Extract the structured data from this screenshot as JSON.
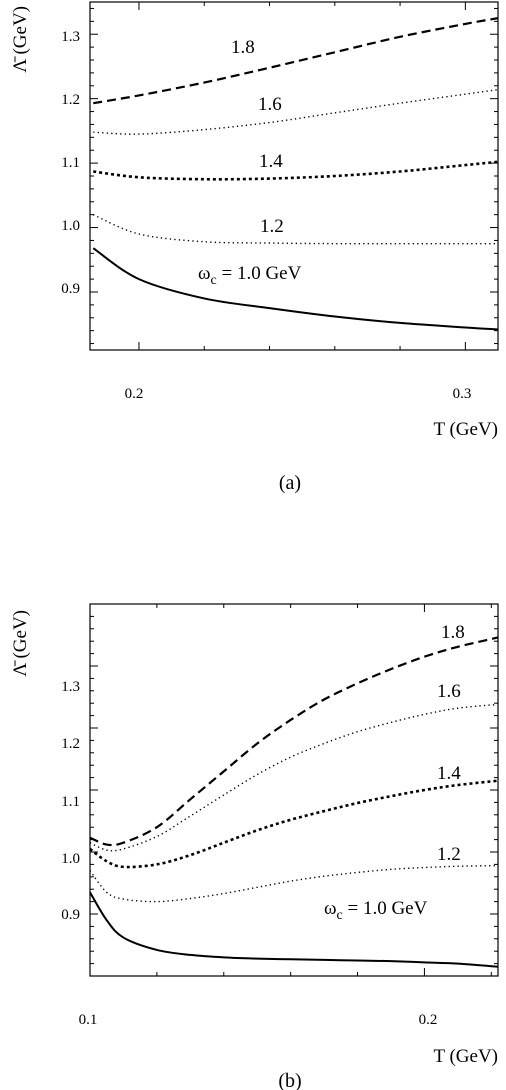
{
  "chart_data": [
    {
      "type": "line",
      "panel_label": "(a)",
      "xlabel": "T (GeV)",
      "ylabel": "Λ̄ (GeV)",
      "xlim": [
        0.185,
        0.31
      ],
      "ylim": [
        0.81,
        1.35
      ],
      "xticks": [
        0.2,
        0.3
      ],
      "xtick_labels": [
        "0.2",
        "0.3"
      ],
      "yticks": [
        0.9,
        1.0,
        1.1,
        1.2,
        1.3
      ],
      "ytick_labels": [
        "0.9",
        "1.0",
        "1.1",
        "1.2",
        "1.3"
      ],
      "grid": false,
      "x": [
        0.186,
        0.2,
        0.22,
        0.24,
        0.26,
        0.28,
        0.3,
        0.31
      ],
      "series": [
        {
          "name": "ω_c = 1.0 GeV",
          "style": "solid",
          "values": [
            0.968,
            0.92,
            0.89,
            0.875,
            0.862,
            0.852,
            0.845,
            0.842
          ]
        },
        {
          "name": "1.2",
          "style": "dotted-fine",
          "values": [
            1.02,
            0.99,
            0.978,
            0.976,
            0.975,
            0.975,
            0.975,
            0.975
          ]
        },
        {
          "name": "1.4",
          "style": "dotted-coarse",
          "values": [
            1.087,
            1.078,
            1.075,
            1.076,
            1.08,
            1.087,
            1.097,
            1.102
          ]
        },
        {
          "name": "1.6",
          "style": "dotted-fine",
          "values": [
            1.148,
            1.145,
            1.152,
            1.163,
            1.178,
            1.193,
            1.207,
            1.214
          ]
        },
        {
          "name": "1.8",
          "style": "dashed",
          "values": [
            1.193,
            1.205,
            1.225,
            1.248,
            1.272,
            1.296,
            1.316,
            1.325
          ]
        }
      ],
      "curve_labels": [
        "1.8",
        "1.6",
        "1.4",
        "1.2"
      ],
      "omega_label": {
        "symbol": "ω",
        "sub": "c",
        "text": " = 1.0 GeV"
      }
    },
    {
      "type": "line",
      "panel_label": "(b)",
      "xlabel": "T (GeV)",
      "ylabel": "Λ̄ (GeV)",
      "xlim": [
        0.1,
        0.222
      ],
      "ylim": [
        0.8,
        1.4
      ],
      "xticks": [
        0.1,
        0.2
      ],
      "xtick_labels": [
        "0.1",
        "0.2"
      ],
      "yticks": [
        0.9,
        1.0,
        1.1,
        1.2,
        1.3
      ],
      "ytick_labels": [
        "0.9",
        "1.0",
        "1.1",
        "1.2",
        "1.3"
      ],
      "grid": false,
      "x": [
        0.1,
        0.105,
        0.11,
        0.12,
        0.13,
        0.14,
        0.15,
        0.16,
        0.17,
        0.18,
        0.19,
        0.2,
        0.21,
        0.222
      ],
      "series": [
        {
          "name": "ω_c = 1.0 GeV",
          "style": "solid",
          "values": [
            0.935,
            0.89,
            0.862,
            0.842,
            0.834,
            0.83,
            0.828,
            0.827,
            0.826,
            0.825,
            0.824,
            0.822,
            0.82,
            0.815
          ]
        },
        {
          "name": "1.2",
          "style": "dotted-fine",
          "values": [
            0.97,
            0.935,
            0.924,
            0.92,
            0.925,
            0.933,
            0.943,
            0.953,
            0.961,
            0.967,
            0.972,
            0.975,
            0.977,
            0.978
          ]
        },
        {
          "name": "1.4",
          "style": "dotted-coarse",
          "values": [
            1.005,
            0.985,
            0.976,
            0.98,
            0.995,
            1.015,
            1.035,
            1.052,
            1.066,
            1.079,
            1.09,
            1.1,
            1.108,
            1.115
          ]
        },
        {
          "name": "1.6",
          "style": "dotted-fine",
          "values": [
            1.015,
            1.003,
            1.005,
            1.025,
            1.058,
            1.092,
            1.125,
            1.153,
            1.175,
            1.194,
            1.209,
            1.222,
            1.232,
            1.238
          ]
        },
        {
          "name": "1.8",
          "style": "dashed",
          "values": [
            1.023,
            1.012,
            1.015,
            1.04,
            1.085,
            1.13,
            1.175,
            1.213,
            1.246,
            1.272,
            1.295,
            1.315,
            1.331,
            1.346
          ]
        }
      ],
      "curve_labels": [
        "1.8",
        "1.6",
        "1.4",
        "1.2"
      ],
      "omega_label": {
        "symbol": "ω",
        "sub": "c",
        "text": " = 1.0 GeV"
      }
    }
  ]
}
